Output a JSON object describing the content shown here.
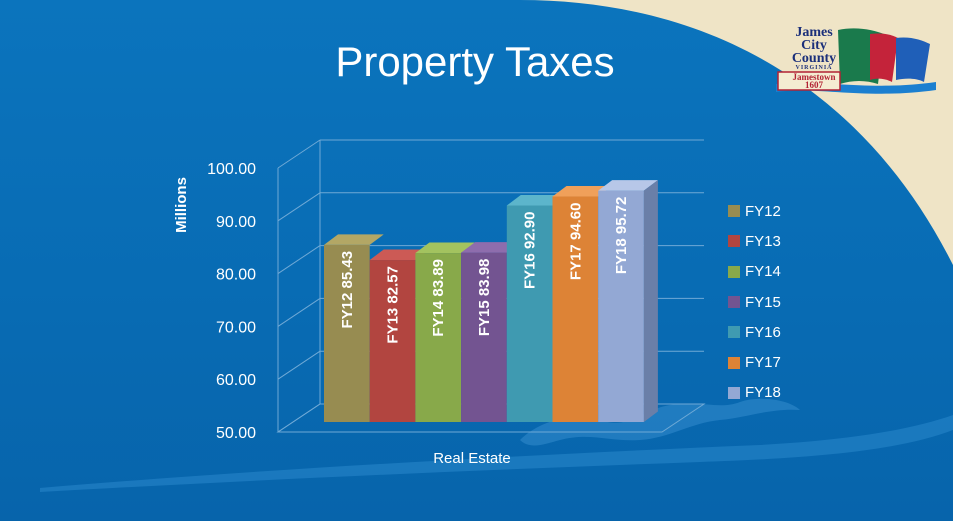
{
  "slide": {
    "title": "Property Taxes",
    "logo": {
      "line1": "James",
      "line2": "City",
      "line3": "County",
      "line4": "VIRGINIA",
      "line5": "Jamestown",
      "line6": "1607"
    }
  },
  "chart_data": {
    "type": "bar",
    "title": "Property Taxes",
    "xlabel": "Real Estate",
    "ylabel": "Millions",
    "ylim": [
      50,
      100
    ],
    "yticks": [
      "50.00",
      "60.00",
      "70.00",
      "80.00",
      "90.00",
      "100.00"
    ],
    "categories": [
      "Real Estate"
    ],
    "series": [
      {
        "name": "FY12",
        "value": 85.43,
        "label": "FY12  85.43",
        "color": "#978c51",
        "side": "#6c6336",
        "top": "#b3a765"
      },
      {
        "name": "FY13",
        "value": 82.57,
        "label": "FY13  82.57",
        "color": "#b24540",
        "side": "#7e2e2b",
        "top": "#cc5a55"
      },
      {
        "name": "FY14",
        "value": 83.89,
        "label": "FY14  83.89",
        "color": "#88a94a",
        "side": "#5f7831",
        "top": "#a3c35f"
      },
      {
        "name": "FY15",
        "value": 83.98,
        "label": "FY15  83.98",
        "color": "#735491",
        "side": "#503a67",
        "top": "#8e6dad"
      },
      {
        "name": "FY16",
        "value": 92.9,
        "label": "FY16  92.90",
        "color": "#3f9ab1",
        "side": "#2b6f80",
        "top": "#5cb5cb"
      },
      {
        "name": "FY17",
        "value": 94.6,
        "label": "FY17  94.60",
        "color": "#dd8336",
        "side": "#a75f22",
        "top": "#f0a05a"
      },
      {
        "name": "FY18",
        "value": 95.72,
        "label": "FY18  95.72",
        "color": "#93a8d4",
        "side": "#6a7fa8",
        "top": "#b7c7e8"
      }
    ],
    "grid": true,
    "legend": "right"
  },
  "colors": {
    "background": "#0a6fb8",
    "corner": "#efe4c6",
    "axis_text": "#ffffff",
    "gridline": "#6fa9d6"
  }
}
